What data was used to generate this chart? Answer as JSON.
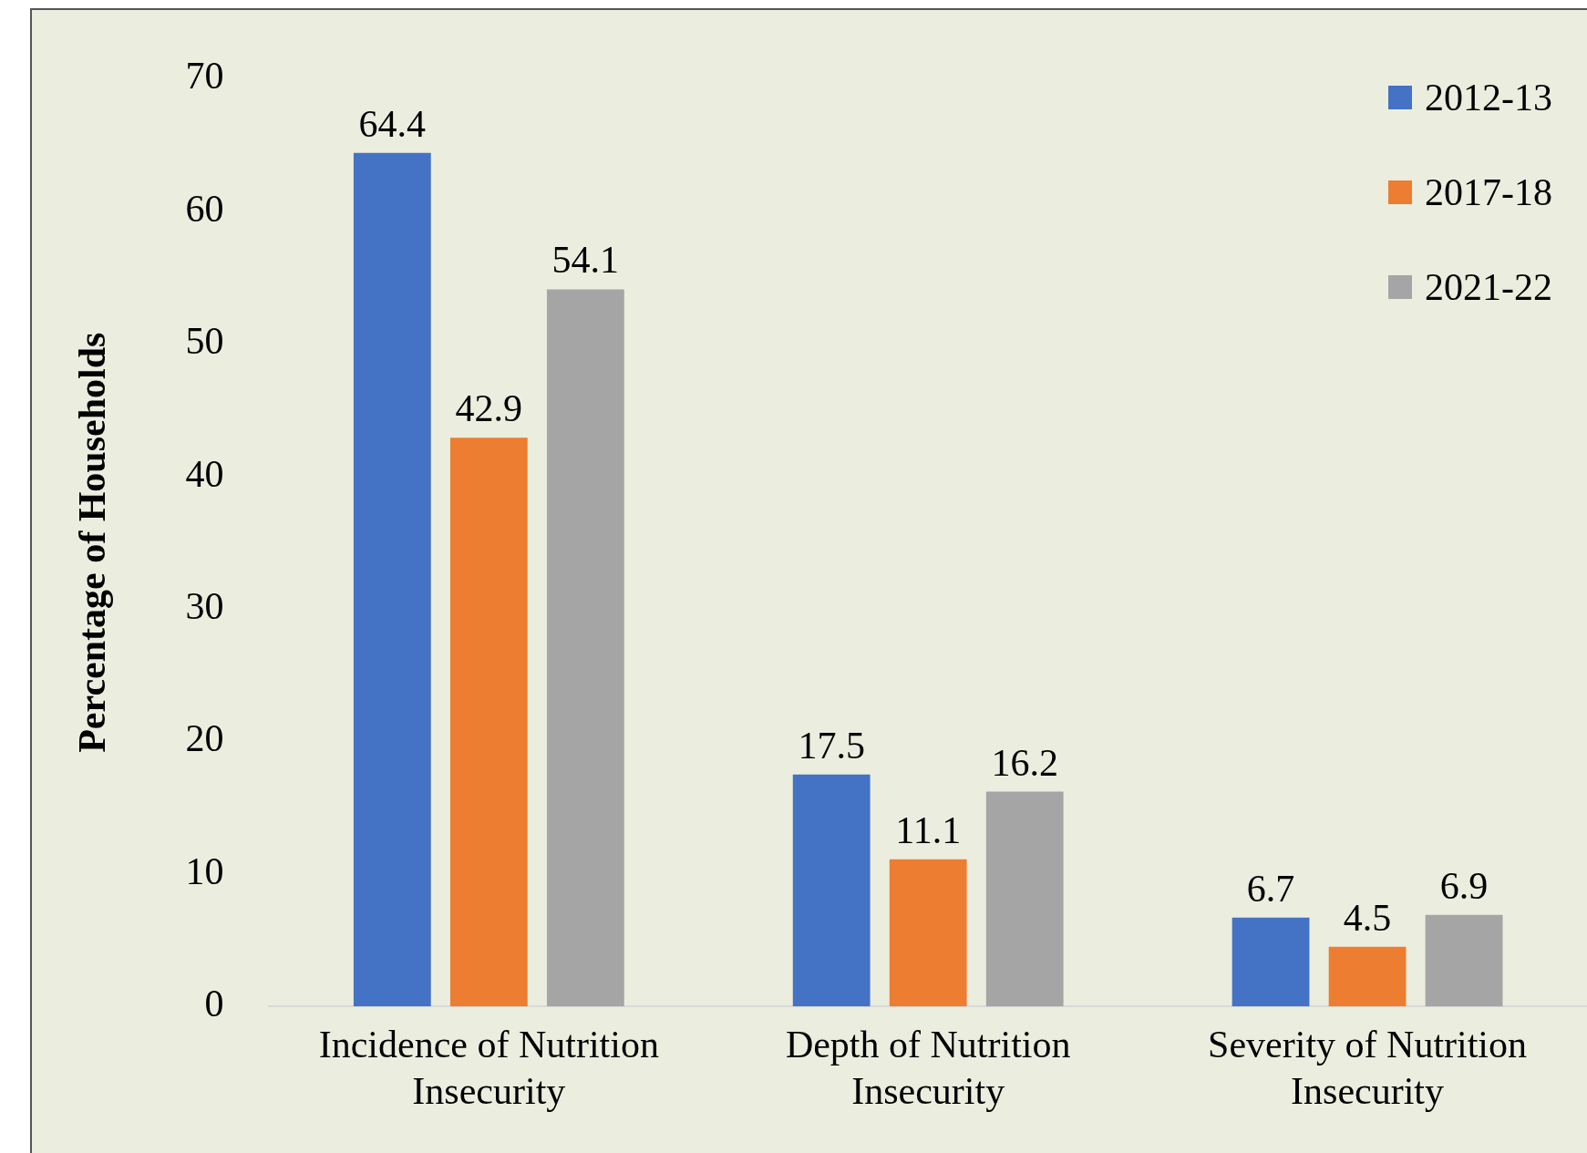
{
  "chart_data": {
    "type": "bar",
    "ylabel": "Percentage of Households",
    "categories": [
      "Incidence of Nutrition Insecurity",
      "Depth of Nutrition Insecurity",
      "Severity of Nutrition Insecurity"
    ],
    "series": [
      {
        "name": "2012-13",
        "color": "#4472c4",
        "values": [
          64.4,
          17.5,
          6.7
        ]
      },
      {
        "name": "2017-18",
        "color": "#ed7d31",
        "values": [
          42.9,
          11.1,
          4.5
        ]
      },
      {
        "name": "2021-22",
        "color": "#a5a5a5",
        "values": [
          54.1,
          16.2,
          6.9
        ]
      }
    ],
    "ylim": [
      0,
      70
    ],
    "yticks": [
      0,
      10,
      20,
      30,
      40,
      50,
      60,
      70
    ],
    "grid": false,
    "legend": "top right",
    "data_labels": true
  }
}
